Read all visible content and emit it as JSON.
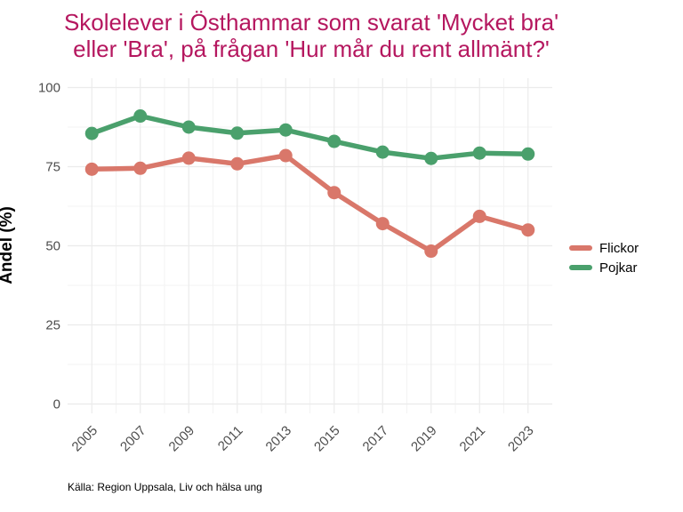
{
  "chart_data": {
    "type": "line",
    "title_lines": [
      "Skolelever i Östhammar som svarat 'Mycket bra'",
      "eller 'Bra', på frågan 'Hur mår du rent allmänt?'"
    ],
    "xlabel": "",
    "ylabel": "Andel (%)",
    "x": [
      2005,
      2007,
      2009,
      2011,
      2013,
      2015,
      2017,
      2019,
      2021,
      2023
    ],
    "x_tick_labels": [
      "2005",
      "2007",
      "2009",
      "2011",
      "2013",
      "2015",
      "2017",
      "2019",
      "2021",
      "2023"
    ],
    "ylim": [
      0,
      100
    ],
    "y_ticks": [
      0,
      25,
      50,
      75,
      100
    ],
    "y_tick_labels": [
      "0",
      "25",
      "50",
      "75",
      "100"
    ],
    "series": [
      {
        "name": "Flickor",
        "color": "#d9776a",
        "values": [
          74.2,
          74.5,
          77.7,
          75.9,
          78.5,
          66.8,
          57.0,
          48.3,
          59.3,
          55.0
        ]
      },
      {
        "name": "Pojkar",
        "color": "#4aa06c",
        "values": [
          85.5,
          91.0,
          87.5,
          85.6,
          86.6,
          83.0,
          79.6,
          77.6,
          79.3,
          79.0
        ]
      }
    ],
    "legend_position": "right",
    "grid": true,
    "caption": "Källa: Region Uppsala, Liv och hälsa ung"
  }
}
